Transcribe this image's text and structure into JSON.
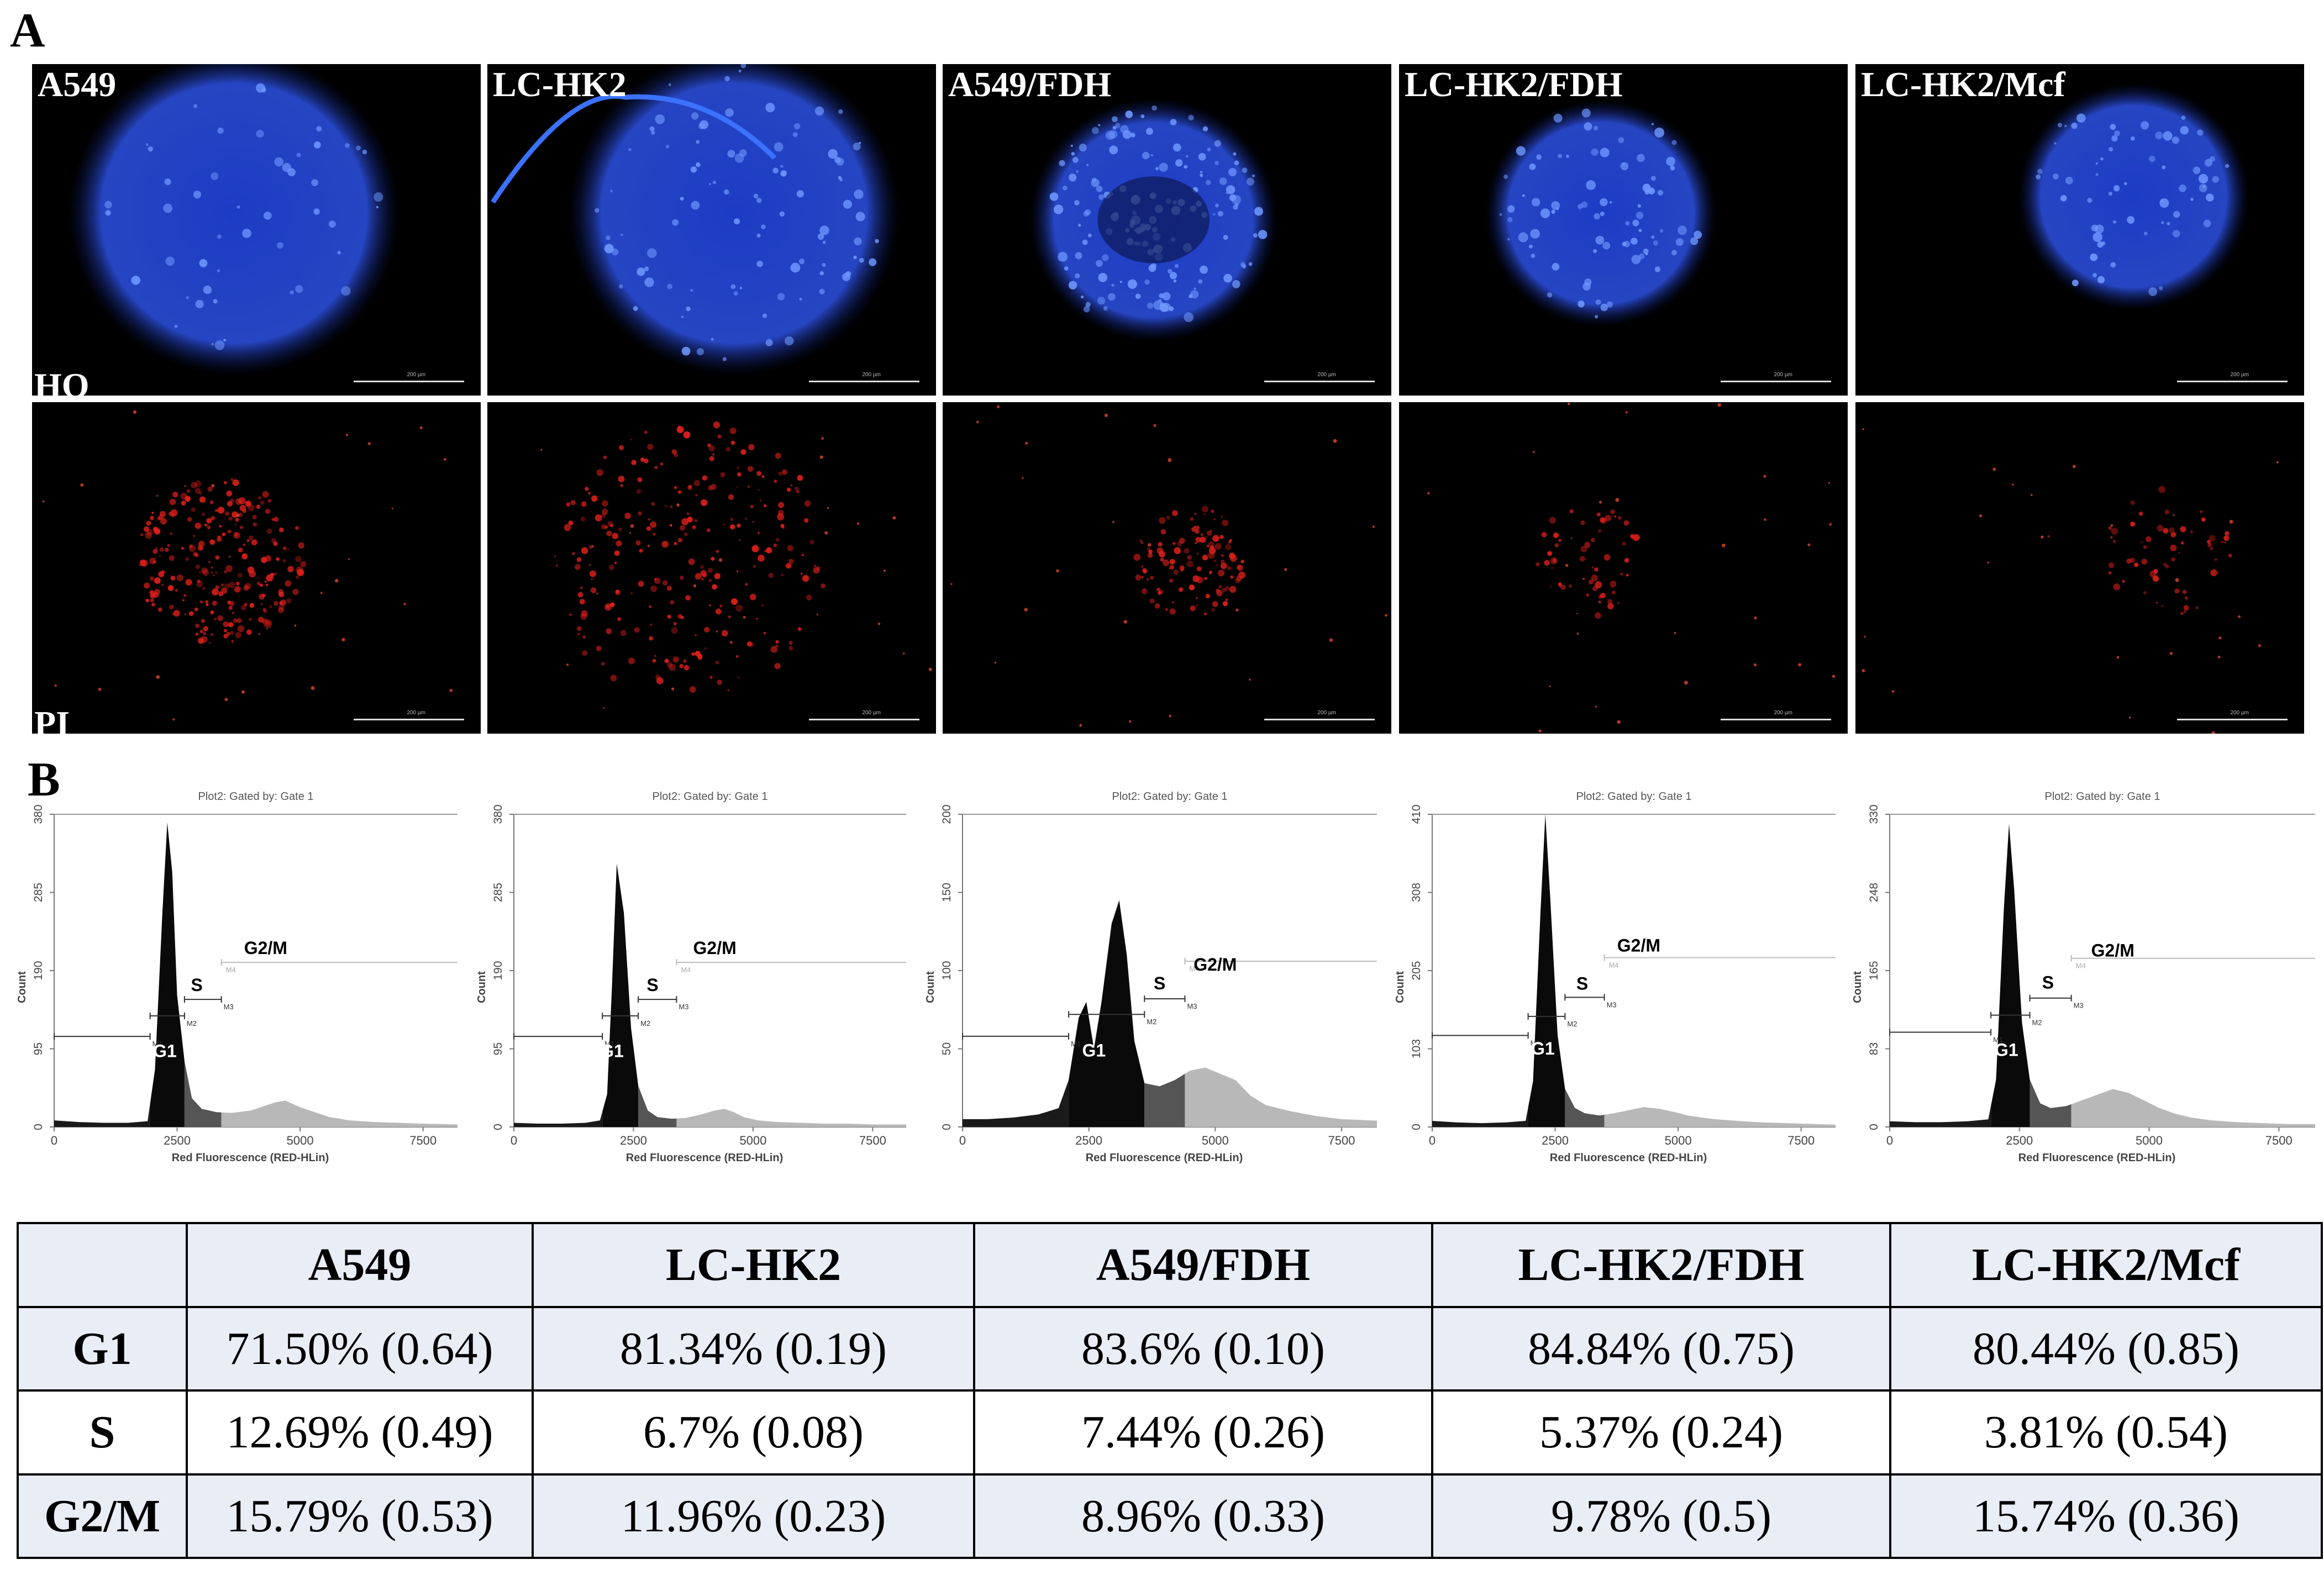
{
  "panel_a": {
    "letter": "A",
    "columns": [
      "A549",
      "LC-HK2",
      "A549/FDH",
      "LC-HK2/FDH",
      "LC-HK2/Mcf"
    ],
    "row_labels": [
      "HO",
      "PI"
    ],
    "scale_text": "200 µm",
    "colors": {
      "ho": "#2a4dd8",
      "pi": "#e0201c"
    }
  },
  "panel_b": {
    "letter": "B"
  },
  "chart_data": [
    {
      "type": "area",
      "title": "Plot2:  Gated by: Gate 1",
      "xlabel": "Red Fluorescence (RED-HLin)",
      "ylabel": "Count",
      "xlim": [
        0,
        8200
      ],
      "ylim": [
        0,
        380
      ],
      "xticks": [
        "0",
        "2500",
        "5000",
        "7500"
      ],
      "yticks": [
        "0",
        "95",
        "190",
        "285",
        "380"
      ],
      "x": [
        0,
        500,
        1000,
        1500,
        1900,
        2050,
        2200,
        2300,
        2400,
        2500,
        2650,
        2800,
        3000,
        3300,
        3600,
        4000,
        4300,
        4500,
        4700,
        5000,
        5300,
        5600,
        6000,
        6500,
        7000,
        7500,
        8200
      ],
      "values": [
        8,
        6,
        5,
        5,
        7,
        70,
        260,
        370,
        310,
        160,
        80,
        35,
        22,
        18,
        17,
        20,
        26,
        30,
        32,
        24,
        18,
        12,
        8,
        6,
        5,
        4,
        3
      ],
      "markers": [
        {
          "label": "M1",
          "from": 0,
          "to": 1950,
          "y": 110
        },
        {
          "label": "M2",
          "from": 1950,
          "to": 2650,
          "y": 135
        },
        {
          "label": "M3",
          "from": 2650,
          "to": 3400,
          "y": 155
        },
        {
          "label": "M4",
          "from": 3400,
          "to": 8200,
          "y": 200
        }
      ],
      "phase_labels": [
        {
          "text": "G1",
          "x": 2250,
          "y": 85
        },
        {
          "text": "S",
          "x": 2900,
          "y": 165
        },
        {
          "text": "G2/M",
          "x": 4300,
          "y": 210
        }
      ]
    },
    {
      "type": "area",
      "title": "Plot2:  Gated by: Gate 1",
      "xlabel": "Red Fluorescence (RED-HLin)",
      "ylabel": "Count",
      "xlim": [
        0,
        8200
      ],
      "ylim": [
        0,
        380
      ],
      "xticks": [
        "0",
        "2500",
        "5000",
        "7500"
      ],
      "yticks": [
        "0",
        "95",
        "190",
        "285",
        "380"
      ],
      "x": [
        0,
        500,
        1000,
        1500,
        1800,
        1950,
        2050,
        2150,
        2300,
        2450,
        2600,
        2800,
        3000,
        3300,
        3600,
        3900,
        4200,
        4400,
        4600,
        4800,
        5100,
        5500,
        6000,
        6500,
        7000,
        7500,
        8200
      ],
      "values": [
        5,
        4,
        4,
        5,
        8,
        40,
        170,
        320,
        260,
        120,
        50,
        20,
        12,
        10,
        11,
        15,
        20,
        22,
        18,
        12,
        8,
        6,
        5,
        4,
        4,
        3,
        3
      ],
      "markers": [
        {
          "label": "M1",
          "from": 0,
          "to": 1850,
          "y": 110
        },
        {
          "label": "M2",
          "from": 1850,
          "to": 2600,
          "y": 135
        },
        {
          "label": "M3",
          "from": 2600,
          "to": 3400,
          "y": 155
        },
        {
          "label": "M4",
          "from": 3400,
          "to": 8200,
          "y": 200
        }
      ],
      "phase_labels": [
        {
          "text": "G1",
          "x": 2050,
          "y": 85
        },
        {
          "text": "S",
          "x": 2900,
          "y": 165
        },
        {
          "text": "G2/M",
          "x": 4200,
          "y": 210
        }
      ]
    },
    {
      "type": "area",
      "title": "Plot2:  Gated by: Gate 1",
      "xlabel": "Red Fluorescence (RED-HLin)",
      "ylabel": "Count",
      "xlim": [
        0,
        8200
      ],
      "ylim": [
        0,
        200
      ],
      "xticks": [
        "0",
        "2500",
        "5000",
        "7500"
      ],
      "yticks": [
        "0",
        "50",
        "100",
        "150",
        "200"
      ],
      "x": [
        0,
        500,
        1000,
        1500,
        1900,
        2100,
        2300,
        2450,
        2600,
        2750,
        2950,
        3100,
        3250,
        3400,
        3600,
        3900,
        4200,
        4500,
        4800,
        5100,
        5400,
        5700,
        6000,
        6500,
        7000,
        7500,
        8200
      ],
      "values": [
        5,
        5,
        6,
        8,
        12,
        30,
        70,
        80,
        50,
        80,
        130,
        145,
        110,
        55,
        28,
        26,
        30,
        36,
        38,
        34,
        30,
        20,
        14,
        10,
        7,
        5,
        4
      ],
      "markers": [
        {
          "label": "M1",
          "from": 0,
          "to": 2100,
          "y": 58
        },
        {
          "label": "M2",
          "from": 2100,
          "to": 3600,
          "y": 72
        },
        {
          "label": "M3",
          "from": 3600,
          "to": 4400,
          "y": 82
        },
        {
          "label": "M4",
          "from": 4400,
          "to": 8200,
          "y": 106
        }
      ],
      "phase_labels": [
        {
          "text": "G1",
          "x": 2600,
          "y": 45
        },
        {
          "text": "S",
          "x": 3900,
          "y": 88
        },
        {
          "text": "G2/M",
          "x": 5000,
          "y": 100
        }
      ]
    },
    {
      "type": "area",
      "title": "Plot2:  Gated by: Gate 1",
      "xlabel": "Red Fluorescence (RED-HLin)",
      "ylabel": "Count",
      "xlim": [
        0,
        8200
      ],
      "ylim": [
        0,
        410
      ],
      "xticks": [
        "0",
        "2500",
        "5000",
        "7500"
      ],
      "yticks": [
        "0",
        "103",
        "205",
        "308",
        "410"
      ],
      "x": [
        0,
        500,
        1000,
        1500,
        1900,
        2050,
        2200,
        2300,
        2400,
        2550,
        2700,
        2900,
        3100,
        3400,
        3700,
        4000,
        4300,
        4600,
        4900,
        5200,
        5500,
        5800,
        6200,
        6700,
        7200,
        7700,
        8200
      ],
      "values": [
        8,
        6,
        5,
        6,
        8,
        60,
        280,
        410,
        300,
        120,
        50,
        25,
        18,
        15,
        18,
        22,
        26,
        24,
        20,
        15,
        12,
        10,
        8,
        6,
        5,
        4,
        3
      ],
      "markers": [
        {
          "label": "M1",
          "from": 0,
          "to": 1950,
          "y": 120
        },
        {
          "label": "M2",
          "from": 1950,
          "to": 2700,
          "y": 145
        },
        {
          "label": "M3",
          "from": 2700,
          "to": 3500,
          "y": 170
        },
        {
          "label": "M4",
          "from": 3500,
          "to": 8200,
          "y": 222
        }
      ],
      "phase_labels": [
        {
          "text": "G1",
          "x": 2250,
          "y": 95
        },
        {
          "text": "S",
          "x": 3050,
          "y": 180
        },
        {
          "text": "G2/M",
          "x": 4200,
          "y": 230
        }
      ]
    },
    {
      "type": "area",
      "title": "Plot2:  Gated by: Gate 1",
      "xlabel": "Red Fluorescence (RED-HLin)",
      "ylabel": "Count",
      "xlim": [
        0,
        8200
      ],
      "ylim": [
        0,
        330
      ],
      "xticks": [
        "0",
        "2500",
        "5000",
        "7500"
      ],
      "yticks": [
        "0",
        "83",
        "165",
        "248",
        "330"
      ],
      "x": [
        0,
        500,
        1000,
        1500,
        1900,
        2050,
        2200,
        2300,
        2400,
        2550,
        2700,
        2900,
        3100,
        3400,
        3700,
        4000,
        4300,
        4600,
        4900,
        5200,
        5500,
        5800,
        6200,
        6700,
        7200,
        7700,
        8200
      ],
      "values": [
        6,
        5,
        5,
        6,
        8,
        50,
        230,
        320,
        250,
        110,
        50,
        25,
        20,
        22,
        28,
        34,
        40,
        36,
        28,
        20,
        14,
        10,
        7,
        5,
        4,
        3,
        3
      ],
      "markers": [
        {
          "label": "M1",
          "from": 0,
          "to": 1950,
          "y": 100
        },
        {
          "label": "M2",
          "from": 1950,
          "to": 2700,
          "y": 118
        },
        {
          "label": "M3",
          "from": 2700,
          "to": 3500,
          "y": 136
        },
        {
          "label": "M4",
          "from": 3500,
          "to": 8200,
          "y": 178
        }
      ],
      "phase_labels": [
        {
          "text": "G1",
          "x": 2250,
          "y": 75
        },
        {
          "text": "S",
          "x": 3050,
          "y": 146
        },
        {
          "text": "G2/M",
          "x": 4300,
          "y": 180
        }
      ]
    }
  ],
  "table": {
    "header": [
      "",
      "A549",
      "LC-HK2",
      "A549/FDH",
      "LC-HK2/FDH",
      "LC-HK2/Mcf"
    ],
    "rows": [
      {
        "phase": "G1",
        "values": [
          "71.50% (0.64)",
          "81.34% (0.19)",
          "83.6% (0.10)",
          "84.84% (0.75)",
          "80.44% (0.85)"
        ]
      },
      {
        "phase": "S",
        "values": [
          "12.69% (0.49)",
          "6.7% (0.08)",
          "7.44% (0.26)",
          "5.37% (0.24)",
          "3.81% (0.54)"
        ]
      },
      {
        "phase": "G2/M",
        "values": [
          "15.79% (0.53)",
          "11.96% (0.23)",
          "8.96% (0.33)",
          "9.78% (0.5)",
          "15.74% (0.36)"
        ]
      }
    ]
  }
}
